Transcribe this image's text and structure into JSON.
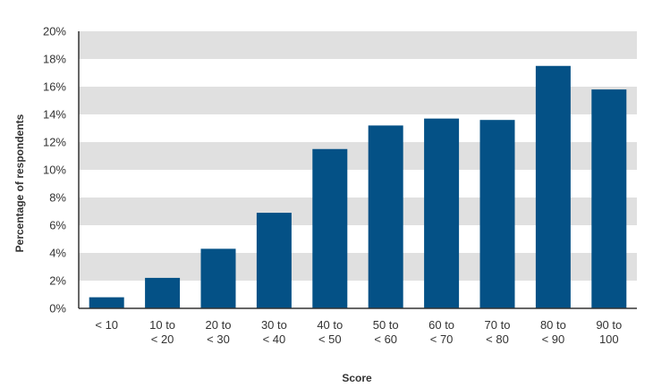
{
  "chart_data": {
    "type": "bar",
    "xlabel": "Score",
    "ylabel": "Percentage of respondents",
    "ylim": [
      0,
      20
    ],
    "yticks": [
      "0%",
      "2%",
      "4%",
      "6%",
      "8%",
      "10%",
      "12%",
      "14%",
      "16%",
      "18%",
      "20%"
    ],
    "categories": [
      [
        "< 10"
      ],
      [
        "10 to",
        "< 20"
      ],
      [
        "20 to",
        "< 30"
      ],
      [
        "30 to",
        "< 40"
      ],
      [
        "40 to",
        "< 50"
      ],
      [
        "50 to",
        "< 60"
      ],
      [
        "60 to",
        "< 70"
      ],
      [
        "70 to",
        "< 80"
      ],
      [
        "80 to",
        "< 90"
      ],
      [
        "90 to",
        "100"
      ]
    ],
    "values": [
      0.8,
      2.2,
      4.3,
      6.9,
      11.5,
      13.2,
      13.7,
      13.6,
      17.5,
      15.8
    ],
    "grid": "alternating horizontal bands",
    "legend": "none",
    "colors": {
      "bar": "#045186",
      "band": "#e0e0e0",
      "axis": "#333333",
      "text": "#333333"
    }
  }
}
